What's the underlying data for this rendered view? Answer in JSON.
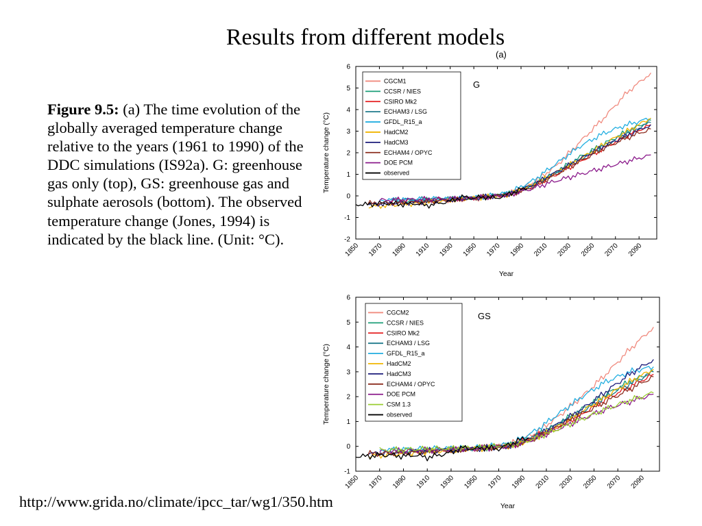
{
  "slide": {
    "title": "Results from different models",
    "caption_bold": "Figure 9.5:",
    "caption_rest": " (a) The time evolution of the globally averaged temperature change relative to the years (1961 to 1990) of the DDC simulations (IS92a). G: greenhouse gas only (top), GS: greenhouse gas and sulphate aerosols (bottom). The observed temperature change (Jones, 1994) is indicated by the black line. (Unit: °C).",
    "source_url": "http://www.grida.no/climate/ipcc_tar/wg1/350.htm"
  },
  "chart_data": [
    {
      "type": "line",
      "panel_tag": "(a)",
      "panel_label": "G",
      "xlabel": "Year",
      "ylabel": "Temperature change (°C)",
      "xlim": [
        1850,
        2105
      ],
      "ylim": [
        -2,
        6
      ],
      "xticks": [
        1850,
        1870,
        1890,
        1910,
        1930,
        1950,
        1970,
        1990,
        2010,
        2030,
        2050,
        2070,
        2090
      ],
      "yticks": [
        -2,
        -1,
        0,
        1,
        2,
        3,
        4,
        5,
        6
      ],
      "legend_position": "top-left",
      "grid": false,
      "series": [
        {
          "name": "CGCM1",
          "color": "#f08a7e",
          "x": [
            1900,
            1950,
            1980,
            2000,
            2020,
            2040,
            2060,
            2080,
            2100
          ],
          "y": [
            -0.3,
            -0.15,
            0.1,
            0.6,
            1.4,
            2.5,
            3.6,
            4.8,
            5.7
          ]
        },
        {
          "name": "CCSR / NIES",
          "color": "#1a9e77",
          "x": [
            1890,
            1950,
            1980,
            2000,
            2020,
            2040,
            2060,
            2080,
            2100
          ],
          "y": [
            -0.25,
            -0.1,
            0.1,
            0.5,
            1.1,
            1.8,
            2.4,
            3.0,
            3.5
          ]
        },
        {
          "name": "CSIRO Mk2",
          "color": "#e41a1c",
          "x": [
            1880,
            1950,
            1980,
            2000,
            2020,
            2040,
            2060,
            2080,
            2100
          ],
          "y": [
            -0.25,
            -0.1,
            0.05,
            0.45,
            1.0,
            1.6,
            2.2,
            2.8,
            3.3
          ]
        },
        {
          "name": "ECHAM3 / LSG",
          "color": "#1f7a8c",
          "x": [
            1880,
            1950,
            1980,
            2000,
            2020,
            2040,
            2060,
            2080,
            2100
          ],
          "y": [
            -0.2,
            -0.1,
            0.1,
            0.5,
            1.1,
            1.7,
            2.3,
            2.9,
            3.4
          ]
        },
        {
          "name": "GFDL_R15_a",
          "color": "#22aee0",
          "x": [
            1870,
            1950,
            1980,
            2000,
            2020,
            2040,
            2060,
            2080,
            2100
          ],
          "y": [
            -0.2,
            -0.1,
            0.15,
            0.7,
            1.5,
            2.3,
            2.9,
            3.3,
            3.6
          ]
        },
        {
          "name": "HadCM2",
          "color": "#f0b400",
          "x": [
            1861,
            1900,
            1950,
            1980,
            2000,
            2020,
            2040,
            2060,
            2080,
            2100
          ],
          "y": [
            -0.5,
            -0.35,
            -0.1,
            0.05,
            0.5,
            1.1,
            1.7,
            2.4,
            3.0,
            3.6
          ]
        },
        {
          "name": "HadCM3",
          "color": "#1c1c7a",
          "x": [
            1861,
            1900,
            1950,
            1980,
            2000,
            2020,
            2040,
            2060,
            2080,
            2100
          ],
          "y": [
            -0.4,
            -0.3,
            -0.1,
            0.05,
            0.5,
            1.1,
            1.7,
            2.3,
            2.8,
            3.3
          ]
        },
        {
          "name": "ECHAM4 / OPYC",
          "color": "#8c2d1f",
          "x": [
            1860,
            1900,
            1950,
            1980,
            2000,
            2020,
            2040,
            2060,
            2080,
            2100
          ],
          "y": [
            -0.35,
            -0.3,
            -0.1,
            0.05,
            0.4,
            1.0,
            1.6,
            2.2,
            2.7,
            3.1
          ]
        },
        {
          "name": "DOE PCM",
          "color": "#8b1a8b",
          "x": [
            1870,
            1950,
            1980,
            2000,
            2020,
            2040,
            2060,
            2080,
            2100
          ],
          "y": [
            -0.2,
            -0.1,
            0.05,
            0.35,
            0.7,
            1.0,
            1.3,
            1.6,
            1.9
          ]
        },
        {
          "name": "observed",
          "color": "#000000",
          "x": [
            1850,
            1860,
            1870,
            1880,
            1890,
            1900,
            1910,
            1920,
            1930,
            1940,
            1950,
            1960,
            1970,
            1980,
            1990,
            1995
          ],
          "y": [
            -0.4,
            -0.4,
            -0.35,
            -0.35,
            -0.4,
            -0.35,
            -0.45,
            -0.35,
            -0.25,
            -0.05,
            -0.1,
            -0.05,
            -0.1,
            0.1,
            0.3,
            0.35
          ]
        }
      ]
    },
    {
      "type": "line",
      "panel_label": "GS",
      "xlabel": "Year",
      "ylabel": "Temperature change (°C)",
      "xlim": [
        1850,
        2105
      ],
      "ylim": [
        -1,
        6
      ],
      "xticks": [
        1850,
        1870,
        1890,
        1910,
        1930,
        1950,
        1970,
        1990,
        2010,
        2030,
        2050,
        2070,
        2090
      ],
      "yticks": [
        -1,
        0,
        1,
        2,
        3,
        4,
        5,
        6
      ],
      "legend_position": "top-left",
      "grid": false,
      "series": [
        {
          "name": "CGCM2",
          "color": "#f08a7e",
          "x": [
            1900,
            1950,
            1980,
            2000,
            2020,
            2040,
            2060,
            2080,
            2100
          ],
          "y": [
            -0.2,
            -0.1,
            0.1,
            0.5,
            1.2,
            2.0,
            2.9,
            3.9,
            4.8
          ]
        },
        {
          "name": "CCSR / NIES",
          "color": "#1a9e77",
          "x": [
            1890,
            1950,
            1980,
            2000,
            2020,
            2040,
            2060,
            2080,
            2100
          ],
          "y": [
            -0.2,
            -0.1,
            0.05,
            0.4,
            0.9,
            1.5,
            2.1,
            2.6,
            3.0
          ]
        },
        {
          "name": "CSIRO Mk2",
          "color": "#e41a1c",
          "x": [
            1880,
            1950,
            1980,
            2000,
            2020,
            2040,
            2060,
            2080,
            2100
          ],
          "y": [
            -0.2,
            -0.1,
            0.05,
            0.4,
            0.8,
            1.3,
            1.9,
            2.4,
            2.9
          ]
        },
        {
          "name": "ECHAM3 / LSG",
          "color": "#1f7a8c",
          "x": [
            1880,
            1950,
            1980,
            2000,
            2020,
            2040,
            2060,
            2080,
            2100
          ],
          "y": [
            -0.15,
            -0.1,
            0.05,
            0.4,
            0.9,
            1.4,
            2.0,
            2.5,
            3.0
          ]
        },
        {
          "name": "GFDL_R15_a",
          "color": "#22aee0",
          "x": [
            1870,
            1950,
            1980,
            2000,
            2020,
            2040,
            2060,
            2080,
            2100
          ],
          "y": [
            -0.15,
            -0.05,
            0.1,
            0.6,
            1.3,
            2.0,
            2.6,
            3.0,
            3.2
          ]
        },
        {
          "name": "HadCM2",
          "color": "#f0b400",
          "x": [
            1861,
            1900,
            1950,
            1980,
            2000,
            2020,
            2040,
            2060,
            2080,
            2100
          ],
          "y": [
            -0.4,
            -0.25,
            -0.1,
            0.0,
            0.3,
            0.8,
            1.4,
            2.0,
            2.6,
            3.1
          ]
        },
        {
          "name": "HadCM3",
          "color": "#1c1c7a",
          "x": [
            1861,
            1900,
            1950,
            1980,
            2000,
            2020,
            2040,
            2060,
            2080,
            2100
          ],
          "y": [
            -0.3,
            -0.2,
            -0.1,
            0.0,
            0.35,
            0.9,
            1.5,
            2.2,
            2.9,
            3.5
          ]
        },
        {
          "name": "ECHAM4 / OPYC",
          "color": "#8c2d1f",
          "x": [
            1860,
            1900,
            1950,
            1980,
            2000,
            2020,
            2040,
            2060,
            2080,
            2100
          ],
          "y": [
            -0.3,
            -0.25,
            -0.1,
            0.0,
            0.3,
            0.8,
            1.3,
            1.8,
            2.3,
            2.8
          ]
        },
        {
          "name": "DOE PCM",
          "color": "#8b1a8b",
          "x": [
            1870,
            1950,
            1980,
            2000,
            2020,
            2040,
            2060,
            2080,
            2100
          ],
          "y": [
            -0.2,
            -0.1,
            0.0,
            0.3,
            0.7,
            1.1,
            1.5,
            1.8,
            2.1
          ]
        },
        {
          "name": "CSM 1.3",
          "color": "#9acd32",
          "x": [
            1870,
            1950,
            1980,
            2000,
            2020,
            2040,
            2060,
            2080,
            2100
          ],
          "y": [
            -0.15,
            -0.05,
            0.05,
            0.3,
            0.7,
            1.1,
            1.5,
            1.85,
            2.15
          ]
        },
        {
          "name": "observed",
          "color": "#000000",
          "x": [
            1850,
            1860,
            1870,
            1880,
            1890,
            1900,
            1910,
            1920,
            1930,
            1940,
            1950,
            1960,
            1970,
            1980,
            1990,
            1995
          ],
          "y": [
            -0.4,
            -0.4,
            -0.35,
            -0.35,
            -0.4,
            -0.35,
            -0.45,
            -0.35,
            -0.25,
            -0.05,
            -0.1,
            -0.05,
            -0.1,
            0.1,
            0.3,
            0.35
          ]
        }
      ]
    }
  ]
}
